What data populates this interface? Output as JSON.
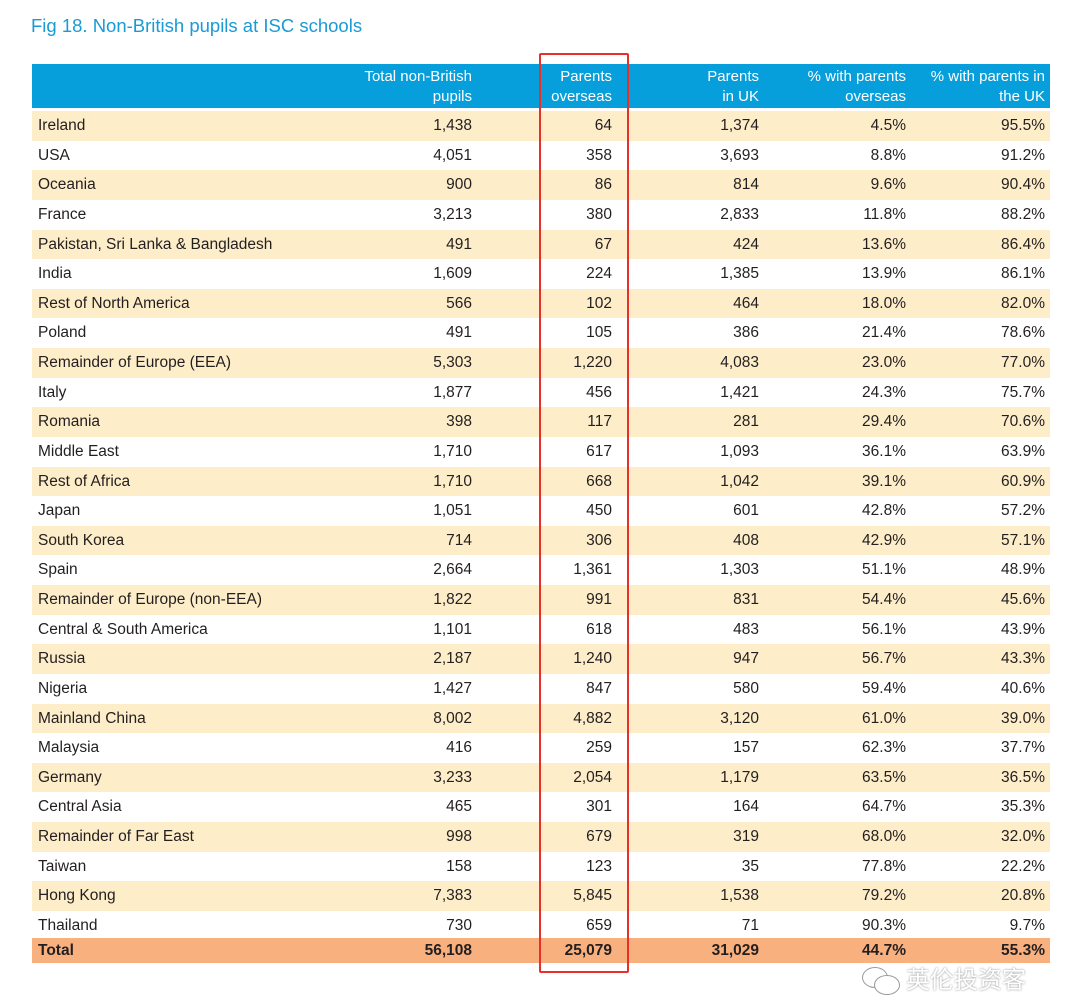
{
  "title": "Fig 18. Non-British pupils at ISC schools",
  "columns": [
    "",
    "Total non-British\npupils",
    "Parents\noverseas",
    "Parents\nin UK",
    "% with parents\noverseas",
    "% with parents in\nthe UK"
  ],
  "rows": [
    [
      "Ireland",
      "1,438",
      "64",
      "1,374",
      "4.5%",
      "95.5%"
    ],
    [
      "USA",
      "4,051",
      "358",
      "3,693",
      "8.8%",
      "91.2%"
    ],
    [
      "Oceania",
      "900",
      "86",
      "814",
      "9.6%",
      "90.4%"
    ],
    [
      "France",
      "3,213",
      "380",
      "2,833",
      "11.8%",
      "88.2%"
    ],
    [
      "Pakistan, Sri Lanka & Bangladesh",
      "491",
      "67",
      "424",
      "13.6%",
      "86.4%"
    ],
    [
      "India",
      "1,609",
      "224",
      "1,385",
      "13.9%",
      "86.1%"
    ],
    [
      "Rest of North America",
      "566",
      "102",
      "464",
      "18.0%",
      "82.0%"
    ],
    [
      "Poland",
      "491",
      "105",
      "386",
      "21.4%",
      "78.6%"
    ],
    [
      "Remainder of Europe (EEA)",
      "5,303",
      "1,220",
      "4,083",
      "23.0%",
      "77.0%"
    ],
    [
      "Italy",
      "1,877",
      "456",
      "1,421",
      "24.3%",
      "75.7%"
    ],
    [
      "Romania",
      "398",
      "117",
      "281",
      "29.4%",
      "70.6%"
    ],
    [
      "Middle East",
      "1,710",
      "617",
      "1,093",
      "36.1%",
      "63.9%"
    ],
    [
      "Rest of Africa",
      "1,710",
      "668",
      "1,042",
      "39.1%",
      "60.9%"
    ],
    [
      "Japan",
      "1,051",
      "450",
      "601",
      "42.8%",
      "57.2%"
    ],
    [
      "South Korea",
      "714",
      "306",
      "408",
      "42.9%",
      "57.1%"
    ],
    [
      "Spain",
      "2,664",
      "1,361",
      "1,303",
      "51.1%",
      "48.9%"
    ],
    [
      "Remainder of Europe (non-EEA)",
      "1,822",
      "991",
      "831",
      "54.4%",
      "45.6%"
    ],
    [
      "Central & South America",
      "1,101",
      "618",
      "483",
      "56.1%",
      "43.9%"
    ],
    [
      "Russia",
      "2,187",
      "1,240",
      "947",
      "56.7%",
      "43.3%"
    ],
    [
      "Nigeria",
      "1,427",
      "847",
      "580",
      "59.4%",
      "40.6%"
    ],
    [
      "Mainland China",
      "8,002",
      "4,882",
      "3,120",
      "61.0%",
      "39.0%"
    ],
    [
      "Malaysia",
      "416",
      "259",
      "157",
      "62.3%",
      "37.7%"
    ],
    [
      "Germany",
      "3,233",
      "2,054",
      "1,179",
      "63.5%",
      "36.5%"
    ],
    [
      "Central Asia",
      "465",
      "301",
      "164",
      "64.7%",
      "35.3%"
    ],
    [
      "Remainder of Far East",
      "998",
      "679",
      "319",
      "68.0%",
      "32.0%"
    ],
    [
      "Taiwan",
      "158",
      "123",
      "35",
      "77.8%",
      "22.2%"
    ],
    [
      "Hong Kong",
      "7,383",
      "5,845",
      "1,538",
      "79.2%",
      "20.8%"
    ],
    [
      "Thailand",
      "730",
      "659",
      "71",
      "90.3%",
      "9.7%"
    ]
  ],
  "total": [
    "Total",
    "56,108",
    "25,079",
    "31,029",
    "44.7%",
    "55.3%"
  ],
  "watermark": "英伦投资客",
  "colors": {
    "header": "#069fdb",
    "alt_row": "#fdedc8",
    "total_row": "#f8b07f",
    "highlight_box": "#e8302a",
    "title": "#1a9ad6"
  }
}
